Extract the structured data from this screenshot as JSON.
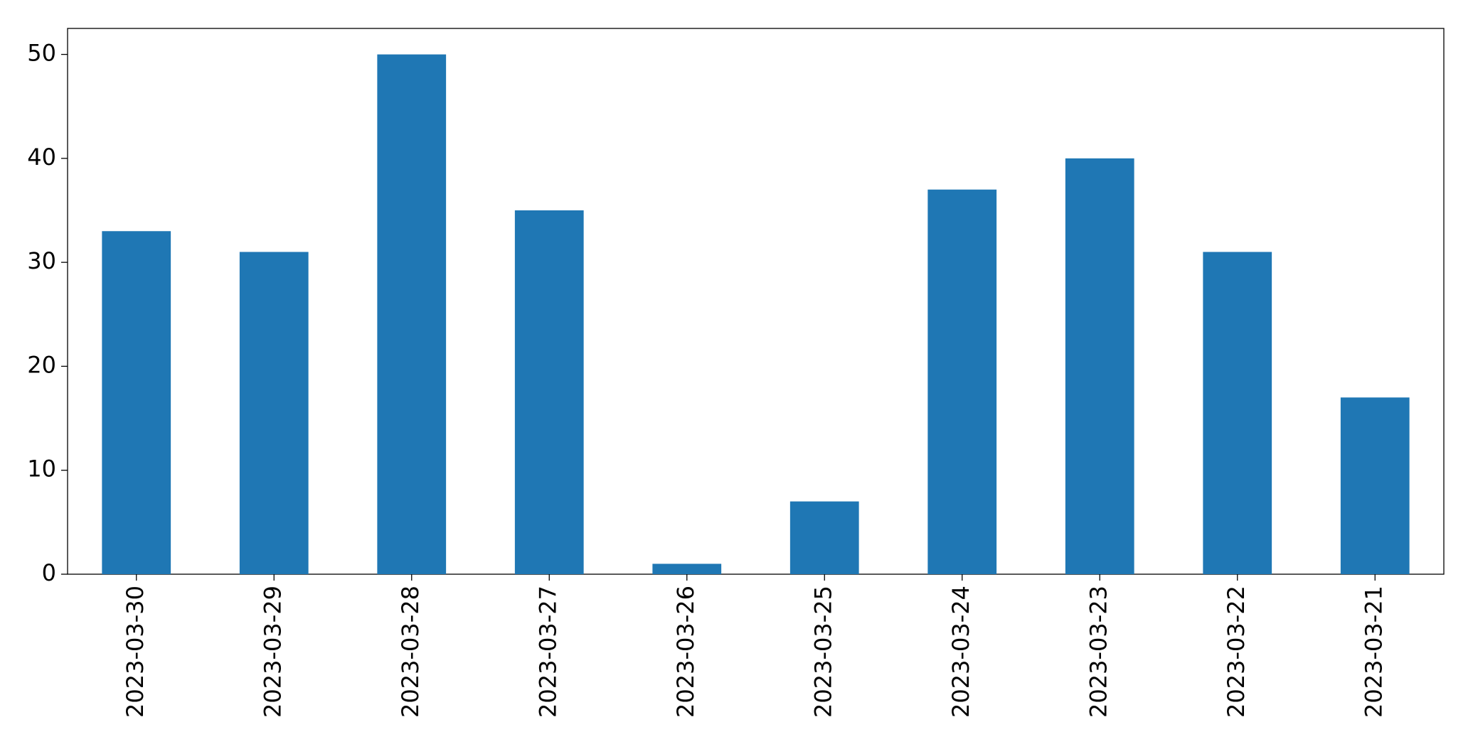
{
  "chart_data": {
    "type": "bar",
    "categories": [
      "2023-03-30",
      "2023-03-29",
      "2023-03-28",
      "2023-03-27",
      "2023-03-26",
      "2023-03-25",
      "2023-03-24",
      "2023-03-23",
      "2023-03-22",
      "2023-03-21"
    ],
    "values": [
      33,
      31,
      50,
      35,
      1,
      7,
      37,
      40,
      31,
      17
    ],
    "color": "#1f77b4",
    "ylim": [
      0,
      52.5
    ],
    "yticks": [
      0,
      10,
      20,
      30,
      40,
      50
    ],
    "grid": false
  }
}
